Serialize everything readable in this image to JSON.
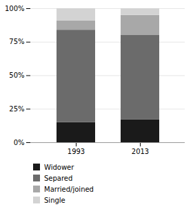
{
  "chart_data": {
    "type": "bar",
    "stacked": true,
    "categories": [
      "1993",
      "2013"
    ],
    "series": [
      {
        "name": "Widower",
        "color": "#1a1a1a",
        "values": [
          15,
          17
        ]
      },
      {
        "name": "Separed",
        "color": "#6b6b6b",
        "values": [
          69,
          63
        ]
      },
      {
        "name": "Married/joined",
        "color": "#a8a8a8",
        "values": [
          7,
          15
        ]
      },
      {
        "name": "Single",
        "color": "#d3d3d3",
        "values": [
          9,
          5
        ]
      }
    ],
    "ylim": [
      0,
      100
    ],
    "yticks": [
      {
        "value": 0,
        "label": "0%"
      },
      {
        "value": 25,
        "label": "25%"
      },
      {
        "value": 50,
        "label": "50%"
      },
      {
        "value": 75,
        "label": "75%"
      },
      {
        "value": 100,
        "label": "100%"
      }
    ],
    "grid": true,
    "legend": "bottom"
  }
}
